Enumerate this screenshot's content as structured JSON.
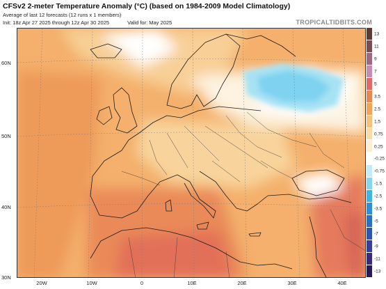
{
  "header": {
    "title": "CFSv2 2-meter Temperature Anomaly (°C) (based on 1984-2009 Model Climatology)",
    "subtitle": "Average of last 12 forecasts (12 runs x 1 members)",
    "init": "Init: 18z Apr 27 2025 through 12z Apr 30 2025",
    "valid": "Valid for: May 2025",
    "brand": "TROPICALTIDBITS.COM"
  },
  "axes": {
    "lat_labels": [
      "60N",
      "50N",
      "40N",
      "30N"
    ],
    "lon_labels": [
      "20W",
      "10W",
      "0",
      "10E",
      "20E",
      "30E",
      "40E"
    ]
  },
  "legend": {
    "labels": [
      "13",
      "11",
      "9",
      "7",
      "5",
      "3.5",
      "2.5",
      "1.5",
      "0.75",
      "0.25",
      "-0.25",
      "-0.75",
      "-1.5",
      "-2.5",
      "-3.5",
      "-5",
      "-7",
      "-9",
      "-11",
      "-13"
    ],
    "colors": [
      "#5c3b36",
      "#7a4d52",
      "#9e6a80",
      "#c58eb0",
      "#df6a68",
      "#e8884e",
      "#f2a556",
      "#f6c27a",
      "#f9dca4",
      "#fcefd2",
      "#ffffff",
      "#c4ecf6",
      "#86d6ee",
      "#3fb5e6",
      "#2d8fd8",
      "#2c6fc6",
      "#2f55b3",
      "#3a3da0",
      "#3c2a80",
      "#2a1a5c"
    ]
  },
  "colors": {
    "ocean_warm": "#f2a462",
    "land_warm": "#f6c07c",
    "neutral": "#ffffff",
    "cold": "#8ad8f2",
    "hot": "#e0705a"
  }
}
